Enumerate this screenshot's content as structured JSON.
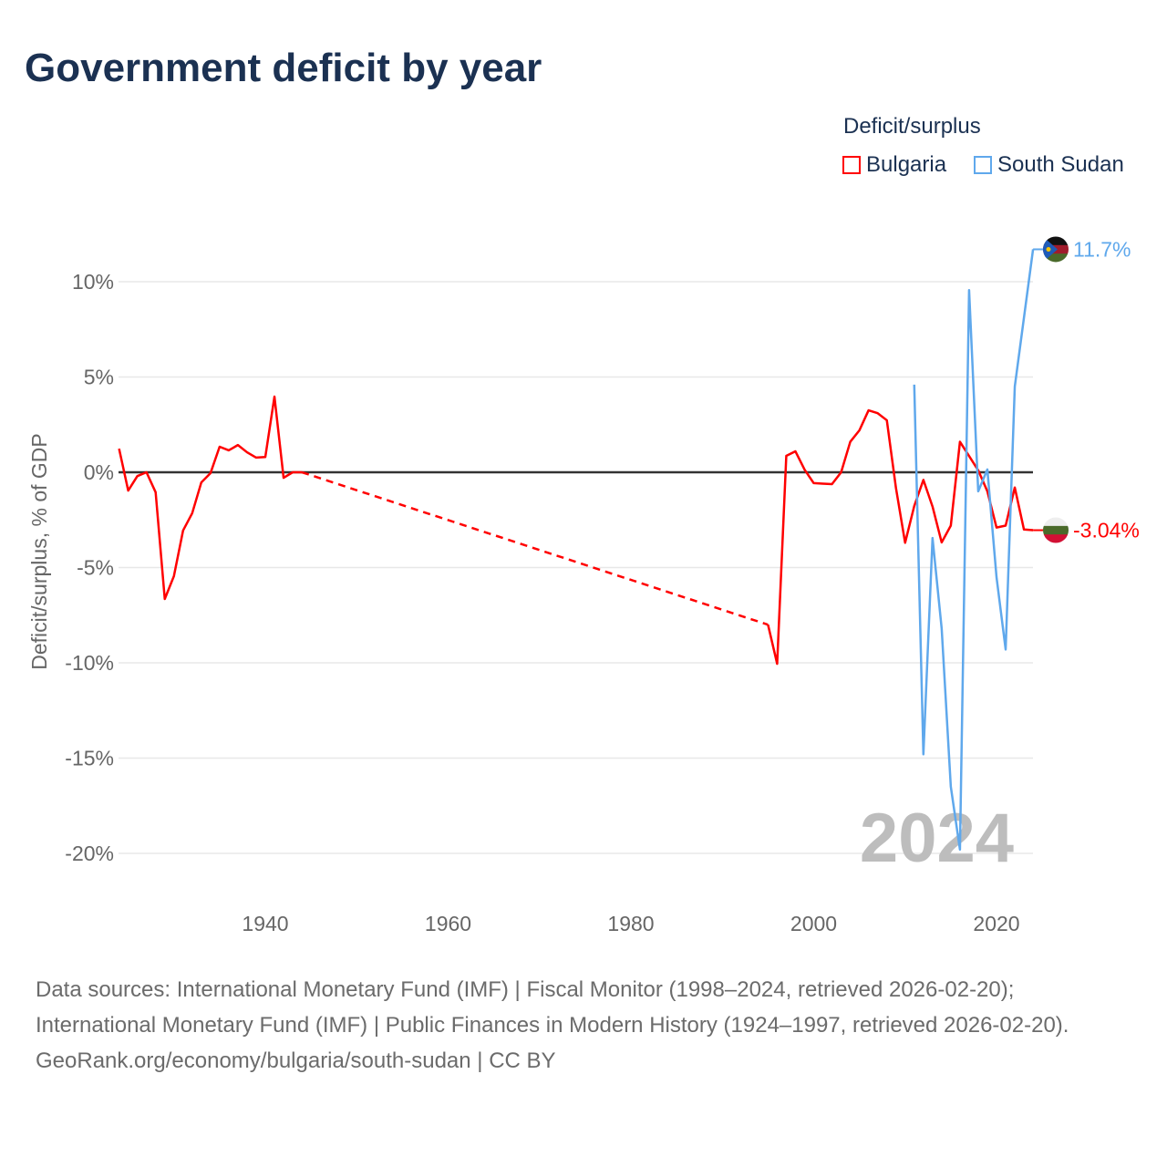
{
  "chart_data": {
    "type": "line",
    "title": "Government deficit by year",
    "xlabel": "",
    "ylabel": "Deficit/surplus, % of GDP",
    "xlim": [
      1924,
      2024
    ],
    "ylim": [
      -22,
      12
    ],
    "x_ticks": [
      1940,
      1960,
      1980,
      2000,
      2020
    ],
    "x_tick_labels": [
      "1940",
      "1960",
      "1980",
      "2000",
      "2020"
    ],
    "y_ticks": [
      10,
      5,
      0,
      -5,
      -10,
      -15,
      -20
    ],
    "y_tick_labels": [
      "10%",
      "5%",
      "0%",
      "-5%",
      "-10%",
      "-15%",
      "-20%"
    ],
    "grid": true,
    "legend_title": "Deficit/surplus",
    "legend_position": "top-right",
    "year_watermark": "2024",
    "series": [
      {
        "name": "Bulgaria",
        "color": "#ff0000",
        "end_label": "-3.04%",
        "dashed_gap": [
          1944,
          1995
        ],
        "x": [
          1924,
          1925,
          1926,
          1927,
          1928,
          1929,
          1930,
          1931,
          1932,
          1933,
          1934,
          1935,
          1936,
          1937,
          1938,
          1939,
          1940,
          1941,
          1942,
          1943,
          1944,
          1995,
          1996,
          1997,
          1998,
          1999,
          2000,
          2001,
          2002,
          2003,
          2004,
          2005,
          2006,
          2007,
          2008,
          2009,
          2010,
          2011,
          2012,
          2013,
          2014,
          2015,
          2016,
          2017,
          2018,
          2019,
          2020,
          2021,
          2022,
          2023,
          2024
        ],
        "y": [
          1.24,
          -0.96,
          -0.2,
          0,
          -1.05,
          -6.65,
          -5.45,
          -3.06,
          -2.15,
          -0.53,
          -0.05,
          1.34,
          1.15,
          1.43,
          1.05,
          0.77,
          0.8,
          3.97,
          -0.29,
          0,
          0,
          -8.0,
          -10.05,
          0.86,
          1.1,
          0.14,
          -0.57,
          -0.6,
          -0.62,
          0,
          1.6,
          2.2,
          3.25,
          3.1,
          2.73,
          -0.83,
          -3.7,
          -1.77,
          -0.4,
          -1.8,
          -3.68,
          -2.8,
          1.6,
          0.85,
          0.1,
          -1.0,
          -2.9,
          -2.8,
          -0.8,
          -3.0,
          -3.04
        ]
      },
      {
        "name": "South Sudan",
        "color": "#5fa8ec",
        "end_label": "11.7%",
        "x": [
          2011,
          2012,
          2013,
          2014,
          2015,
          2016,
          2017,
          2018,
          2019,
          2020,
          2021,
          2022,
          2023,
          2024
        ],
        "y": [
          4.6,
          -14.8,
          -3.45,
          -8.2,
          -16.5,
          -19.8,
          9.56,
          -1.0,
          0.15,
          -5.5,
          -9.3,
          4.5,
          8.1,
          11.7
        ]
      }
    ]
  },
  "footer": {
    "sources": "Data sources: International Monetary Fund (IMF) | Fiscal Monitor (1998–2024, retrieved 2026-02-20); International Monetary Fund (IMF) | Public Finances in Modern History (1924–1997, retrieved 2026-02-20).",
    "link": "GeoRank.org/economy/bulgaria/south-sudan | CC BY"
  }
}
